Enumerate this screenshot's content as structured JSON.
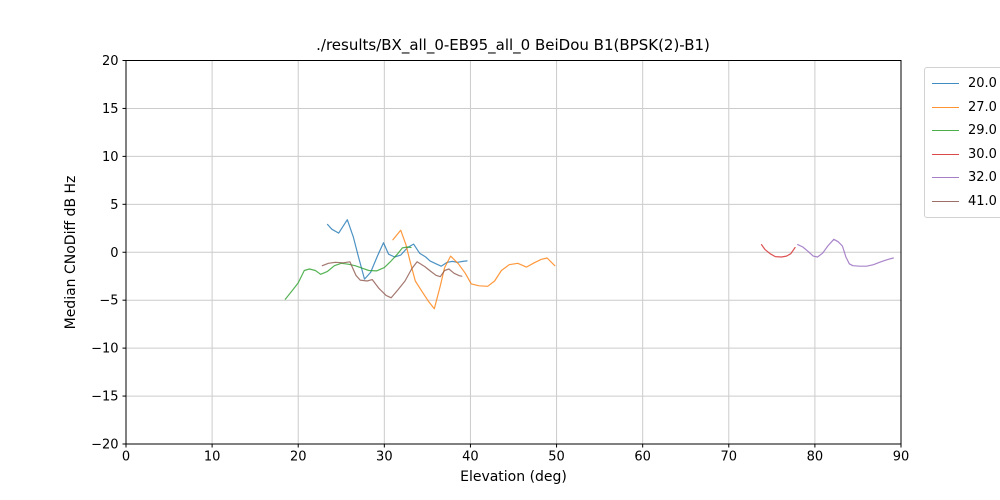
{
  "chart_data": {
    "type": "line",
    "title": "./results/BX_all_0-EB95_all_0 BeiDou B1(BPSK(2)-B1)",
    "xlabel": "Elevation (deg)",
    "ylabel": "Median CNoDiff dB Hz",
    "xlim": [
      0,
      90
    ],
    "ylim": [
      -20,
      20
    ],
    "x_ticks": [
      0,
      10,
      20,
      30,
      40,
      50,
      60,
      70,
      80,
      90
    ],
    "y_ticks": [
      -20,
      -15,
      -10,
      -5,
      0,
      5,
      10,
      15,
      20
    ],
    "grid": true,
    "grid_color": "#cccccc",
    "spine_color": "#000000",
    "legend_position": "outside-upper-right",
    "series": [
      {
        "name": "20.0",
        "color": "#1f77b4",
        "points": [
          [
            23.4,
            2.9
          ],
          [
            23.9,
            2.4
          ],
          [
            24.7,
            2.0
          ],
          [
            25.7,
            3.4
          ],
          [
            26.4,
            1.6
          ],
          [
            27.0,
            -0.5
          ],
          [
            27.7,
            -2.8
          ],
          [
            28.4,
            -2.1
          ],
          [
            29.2,
            -0.4
          ],
          [
            29.9,
            1.0
          ],
          [
            30.5,
            -0.2
          ],
          [
            31.2,
            -0.5
          ],
          [
            31.9,
            -0.3
          ],
          [
            32.7,
            0.5
          ],
          [
            33.4,
            0.85
          ],
          [
            34.1,
            -0.1
          ],
          [
            34.8,
            -0.5
          ],
          [
            35.3,
            -0.9
          ],
          [
            36.0,
            -1.2
          ],
          [
            36.6,
            -1.45
          ],
          [
            37.3,
            -1.05
          ],
          [
            37.9,
            -0.95
          ],
          [
            38.5,
            -1.05
          ],
          [
            39.1,
            -0.95
          ],
          [
            39.6,
            -0.9
          ]
        ]
      },
      {
        "name": "27.0",
        "color": "#ff7f0e",
        "points": [
          [
            31.0,
            1.3
          ],
          [
            31.9,
            2.3
          ],
          [
            32.5,
            0.8
          ],
          [
            33.0,
            -1.0
          ],
          [
            33.6,
            -3.0
          ],
          [
            34.3,
            -4.0
          ],
          [
            35.1,
            -5.1
          ],
          [
            35.8,
            -5.9
          ],
          [
            36.5,
            -3.5
          ],
          [
            37.0,
            -1.6
          ],
          [
            37.7,
            -0.4
          ],
          [
            38.6,
            -1.2
          ],
          [
            39.4,
            -2.2
          ],
          [
            40.1,
            -3.3
          ],
          [
            41.0,
            -3.5
          ],
          [
            42.0,
            -3.55
          ],
          [
            42.8,
            -3.0
          ],
          [
            43.6,
            -1.9
          ],
          [
            44.5,
            -1.3
          ],
          [
            45.5,
            -1.15
          ],
          [
            46.5,
            -1.55
          ],
          [
            47.4,
            -1.1
          ],
          [
            48.2,
            -0.75
          ],
          [
            48.9,
            -0.6
          ],
          [
            49.8,
            -1.4
          ]
        ]
      },
      {
        "name": "29.0",
        "color": "#2ca02c",
        "points": [
          [
            18.5,
            -4.9
          ],
          [
            19.3,
            -4.0
          ],
          [
            20.0,
            -3.2
          ],
          [
            20.7,
            -1.9
          ],
          [
            21.3,
            -1.75
          ],
          [
            22.0,
            -1.9
          ],
          [
            22.6,
            -2.3
          ],
          [
            23.4,
            -2.0
          ],
          [
            24.2,
            -1.4
          ],
          [
            25.0,
            -1.15
          ],
          [
            25.8,
            -1.25
          ],
          [
            26.6,
            -1.4
          ],
          [
            27.4,
            -1.65
          ],
          [
            28.2,
            -1.9
          ],
          [
            29.1,
            -1.95
          ],
          [
            30.0,
            -1.6
          ],
          [
            30.8,
            -0.9
          ],
          [
            31.5,
            -0.2
          ],
          [
            32.1,
            0.45
          ],
          [
            32.7,
            0.55
          ],
          [
            33.1,
            0.5
          ]
        ]
      },
      {
        "name": "30.0",
        "color": "#d62728",
        "points": [
          [
            73.8,
            0.8
          ],
          [
            74.2,
            0.3
          ],
          [
            74.8,
            -0.15
          ],
          [
            75.4,
            -0.45
          ],
          [
            76.1,
            -0.5
          ],
          [
            76.7,
            -0.4
          ],
          [
            77.2,
            -0.15
          ],
          [
            77.7,
            0.5
          ]
        ]
      },
      {
        "name": "32.0",
        "color": "#9467bd",
        "points": [
          [
            78.0,
            0.8
          ],
          [
            78.6,
            0.55
          ],
          [
            79.2,
            0.1
          ],
          [
            79.8,
            -0.4
          ],
          [
            80.3,
            -0.5
          ],
          [
            80.9,
            -0.1
          ],
          [
            81.5,
            0.65
          ],
          [
            82.2,
            1.35
          ],
          [
            82.7,
            1.1
          ],
          [
            83.2,
            0.65
          ],
          [
            83.6,
            -0.5
          ],
          [
            84.0,
            -1.2
          ],
          [
            84.4,
            -1.4
          ],
          [
            85.2,
            -1.45
          ],
          [
            86.0,
            -1.45
          ],
          [
            86.8,
            -1.3
          ],
          [
            87.5,
            -1.05
          ],
          [
            88.3,
            -0.8
          ],
          [
            89.1,
            -0.6
          ]
        ]
      },
      {
        "name": "41.0",
        "color": "#8c564b",
        "points": [
          [
            22.8,
            -1.4
          ],
          [
            23.5,
            -1.15
          ],
          [
            24.3,
            -1.05
          ],
          [
            25.2,
            -1.1
          ],
          [
            26.0,
            -1.0
          ],
          [
            26.7,
            -2.4
          ],
          [
            27.2,
            -2.9
          ],
          [
            28.0,
            -3.0
          ],
          [
            28.6,
            -2.85
          ],
          [
            29.4,
            -3.8
          ],
          [
            30.2,
            -4.5
          ],
          [
            30.8,
            -4.75
          ],
          [
            31.6,
            -3.9
          ],
          [
            32.4,
            -3.0
          ],
          [
            33.2,
            -1.7
          ],
          [
            33.8,
            -1.0
          ],
          [
            34.7,
            -1.5
          ],
          [
            35.4,
            -2.0
          ],
          [
            36.0,
            -2.4
          ],
          [
            36.5,
            -2.55
          ],
          [
            37.0,
            -1.9
          ],
          [
            37.5,
            -1.75
          ],
          [
            38.1,
            -2.2
          ],
          [
            38.7,
            -2.45
          ],
          [
            39.0,
            -2.5
          ]
        ]
      }
    ]
  }
}
